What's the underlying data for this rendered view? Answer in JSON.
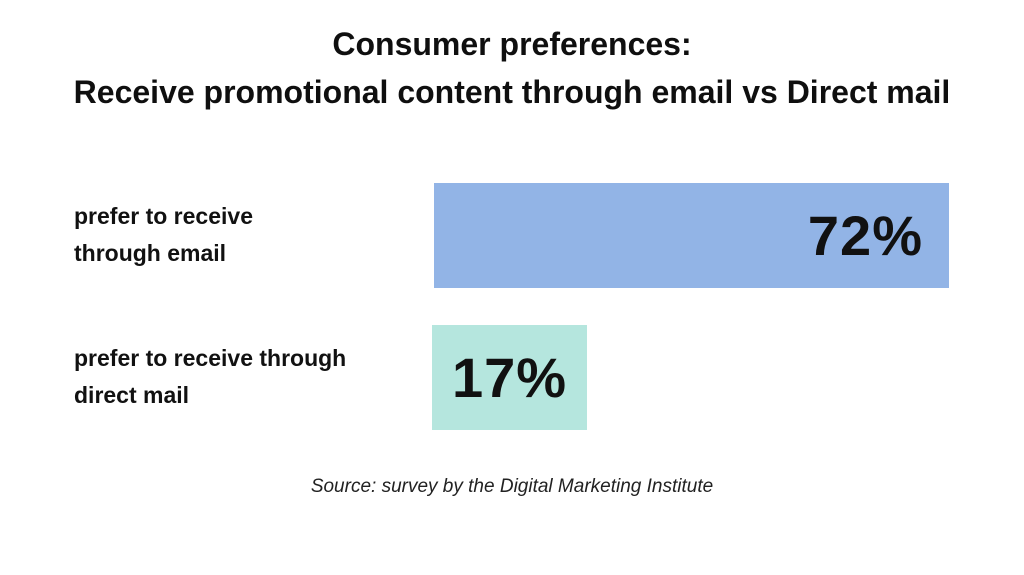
{
  "title": {
    "line1": "Consumer preferences:",
    "line2": "Receive promotional content through email vs Direct mail"
  },
  "source": "Source: survey by the Digital Marketing Institute",
  "chart_data": {
    "type": "bar",
    "orientation": "horizontal",
    "title": "Consumer preferences: Receive promotional content through email vs Direct mail",
    "categories": [
      "prefer to receive through email",
      "prefer to receive through direct mail"
    ],
    "values": [
      72,
      17
    ],
    "value_labels": [
      "72%",
      "17%"
    ],
    "unit": "%",
    "xlim": [
      0,
      72
    ],
    "colors": [
      "#92b4e6",
      "#b5e6de"
    ],
    "grid": false,
    "legend": "none",
    "rows": [
      {
        "label_lines": [
          "prefer to receive",
          "through email"
        ],
        "value": 72,
        "value_label": "72%",
        "color": "#92b4e6",
        "value_align": "right"
      },
      {
        "label_lines": [
          "prefer to receive through",
          "direct mail"
        ],
        "value": 17,
        "value_label": "17%",
        "color": "#b5e6de",
        "value_align": "center"
      }
    ]
  }
}
